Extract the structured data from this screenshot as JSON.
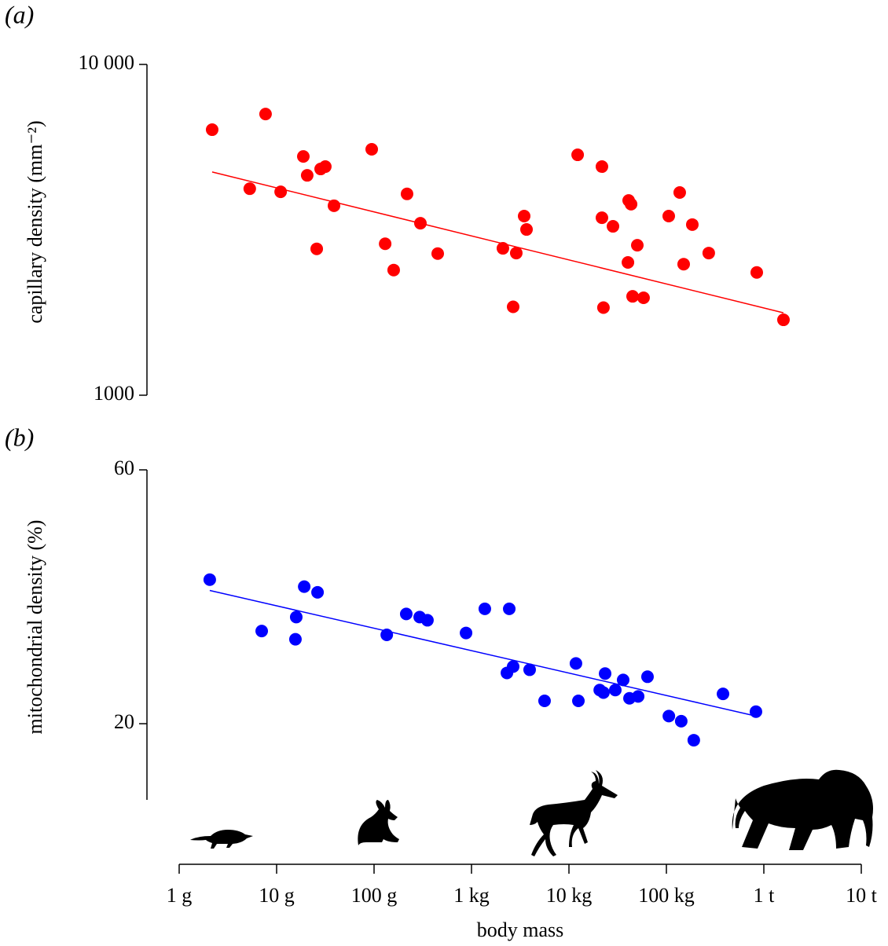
{
  "chart_data": [
    {
      "type": "scatter",
      "panel_label": "(a)",
      "ylabel": "capillary density (mm⁻²)",
      "color": "#ff0000",
      "xlog": true,
      "ylog": true,
      "xlim": [
        1,
        10000000
      ],
      "ylim": [
        1000,
        10000
      ],
      "yticks": [
        1000,
        {
          "value": 10000,
          "label": "10 000"
        }
      ],
      "x": [
        2.18,
        5.3,
        7.7,
        11,
        18.8,
        20.6,
        25.8,
        28.3,
        31.6,
        38.8,
        94.6,
        130,
        159,
        218,
        299,
        450,
        2100,
        2675,
        2880,
        3470,
        3670,
        12280,
        21800,
        22600,
        28300,
        40300,
        41000,
        43400,
        45000,
        50300,
        58300,
        105700,
        137000,
        150400,
        184500,
        272000,
        846000,
        1590000,
        21800
      ],
      "values": [
        6350,
        4210,
        7080,
        4120,
        5270,
        4620,
        2770,
        4830,
        4910,
        3740,
        5540,
        2870,
        2390,
        4060,
        3310,
        2680,
        2780,
        1850,
        2690,
        3480,
        3170,
        5330,
        4910,
        1840,
        3240,
        2520,
        3880,
        3780,
        1990,
        2840,
        1970,
        3480,
        4100,
        2490,
        3280,
        2690,
        2350,
        1690,
        3440
      ],
      "trend": {
        "x": [
          2.18,
          1590000
        ],
        "values": [
          4730,
          1775
        ]
      }
    },
    {
      "type": "scatter",
      "panel_label": "(b)",
      "ylabel": "mitochondrial density (%)",
      "xlabel": "body mass",
      "color": "#0000ff",
      "xlog": true,
      "ylog": false,
      "xlim": [
        1,
        10000000
      ],
      "ylim": [
        8,
        60
      ],
      "yticks": [
        20,
        60
      ],
      "xticks": [
        {
          "value": 1,
          "label": "1 g"
        },
        {
          "value": 10,
          "label": "10 g"
        },
        {
          "value": 100,
          "label": "100 g"
        },
        {
          "value": 1000,
          "label": "1 kg"
        },
        {
          "value": 10000,
          "label": "10 kg"
        },
        {
          "value": 100000,
          "label": "100 kg"
        },
        {
          "value": 1000000,
          "label": "1 t"
        },
        {
          "value": 10000000,
          "label": "10 t"
        }
      ],
      "x": [
        2.06,
        7.03,
        15.9,
        15.6,
        19.2,
        26.3,
        135,
        214,
        294,
        353,
        879,
        1370,
        2310,
        2440,
        2675,
        3950,
        5620,
        11800,
        12500,
        20700,
        22600,
        23500,
        29900,
        36000,
        41800,
        51300,
        64000,
        106000,
        142000,
        191000,
        381000,
        830000
      ],
      "values": [
        42.7,
        34.6,
        36.8,
        33.3,
        41.6,
        40.7,
        34.0,
        37.3,
        36.8,
        36.3,
        34.3,
        38.1,
        28.0,
        38.1,
        29.0,
        28.5,
        23.6,
        29.5,
        23.6,
        25.3,
        24.9,
        27.9,
        25.3,
        26.9,
        24.0,
        24.3,
        27.4,
        21.2,
        20.4,
        17.4,
        24.7,
        21.9
      ],
      "trend": {
        "x": [
          2.06,
          830000
        ],
        "values": [
          41.0,
          21.2
        ]
      }
    }
  ]
}
